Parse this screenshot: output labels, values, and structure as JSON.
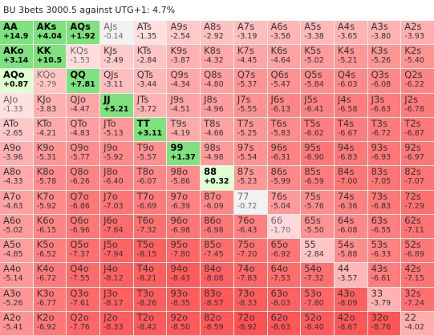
{
  "title": "BU 3bets 3000.5 against UTG+1: 4.7%",
  "ranks": [
    "A",
    "K",
    "Q",
    "J",
    "T",
    "9",
    "8",
    "7",
    "6",
    "5",
    "4",
    "3",
    "2"
  ],
  "hero_cells": [
    "AA",
    "AKs",
    "AQs",
    "AKo",
    "KK",
    "AQo",
    "QQ",
    "JJ",
    "TT",
    "99",
    "88"
  ],
  "colors": {
    "action_green": "#7ee27e",
    "hero_light_green": "#dfffd0",
    "fold_red": "#ff6c6c",
    "fold_light": "#ffe6e6",
    "neutral": "#f2f2f2"
  },
  "grid": [
    [
      [
        "AA",
        "+14.9"
      ],
      [
        "AKs",
        "+4.04"
      ],
      [
        "AQs",
        "+1.92"
      ],
      [
        "AJs",
        "-0.14"
      ],
      [
        "ATs",
        "-1.35"
      ],
      [
        "A9s",
        "-2.54"
      ],
      [
        "A8s",
        "-2.92"
      ],
      [
        "A7s",
        "-3.19"
      ],
      [
        "A6s",
        "-3.56"
      ],
      [
        "A5s",
        "-3.38"
      ],
      [
        "A4s",
        "-3.65"
      ],
      [
        "A3s",
        "-3.80"
      ],
      [
        "A2s",
        "-3.93"
      ]
    ],
    [
      [
        "AKo",
        "+3.14"
      ],
      [
        "KK",
        "+10.5"
      ],
      [
        "KQs",
        "-1.53"
      ],
      [
        "KJs",
        "-2.49"
      ],
      [
        "KTs",
        "-2.84"
      ],
      [
        "K9s",
        "-3.87"
      ],
      [
        "K8s",
        "-4.32"
      ],
      [
        "K7s",
        "-4.45"
      ],
      [
        "K6s",
        "-4.64"
      ],
      [
        "K5s",
        "-5.02"
      ],
      [
        "K4s",
        "-5.21"
      ],
      [
        "K3s",
        "-5.26"
      ],
      [
        "K2s",
        "-5.40"
      ]
    ],
    [
      [
        "AQo",
        "+0.87"
      ],
      [
        "KQo",
        "-2.79"
      ],
      [
        "QQ",
        "+7.81"
      ],
      [
        "QJs",
        "-3.11"
      ],
      [
        "QTs",
        "-3.44"
      ],
      [
        "Q9s",
        "-4.34"
      ],
      [
        "Q8s",
        "-4.80"
      ],
      [
        "Q7s",
        "-5.37"
      ],
      [
        "Q6s",
        "-5.47"
      ],
      [
        "Q5s",
        "-5.84"
      ],
      [
        "Q4s",
        "-6.03"
      ],
      [
        "Q3s",
        "-6.08"
      ],
      [
        "Q2s",
        "-6.22"
      ]
    ],
    [
      [
        "AJo",
        "-1.33"
      ],
      [
        "KJo",
        "-3.83"
      ],
      [
        "QJo",
        "-4.47"
      ],
      [
        "JJ",
        "+5.21"
      ],
      [
        "JTs",
        "-3.72"
      ],
      [
        "J9s",
        "-4.51"
      ],
      [
        "J8s",
        "-4.96"
      ],
      [
        "J7s",
        "-5.55"
      ],
      [
        "J6s",
        "-6.13"
      ],
      [
        "J5s",
        "-6.41"
      ],
      [
        "J4s",
        "-6.58"
      ],
      [
        "J3s",
        "-6.63"
      ],
      [
        "J2s",
        "-6.78"
      ]
    ],
    [
      [
        "ATo",
        "-2.65"
      ],
      [
        "KTo",
        "-4.21"
      ],
      [
        "QTo",
        "-4.83"
      ],
      [
        "JTo",
        "-5.13"
      ],
      [
        "TT",
        "+3.11"
      ],
      [
        "T9s",
        "-4.19"
      ],
      [
        "T8s",
        "-4.66"
      ],
      [
        "T7s",
        "-5.25"
      ],
      [
        "T6s",
        "-5.83"
      ],
      [
        "T5s",
        "-6.62"
      ],
      [
        "T4s",
        "-6.67"
      ],
      [
        "T3s",
        "-6.72"
      ],
      [
        "T2s",
        "-6.87"
      ]
    ],
    [
      [
        "A9o",
        "-3.96"
      ],
      [
        "K9o",
        "-5.31"
      ],
      [
        "Q9o",
        "-5.77"
      ],
      [
        "J9o",
        "-5.92"
      ],
      [
        "T9o",
        "-5.57"
      ],
      [
        "99",
        "+1.37"
      ],
      [
        "98s",
        "-4.98"
      ],
      [
        "97s",
        "-5.54"
      ],
      [
        "96s",
        "-6.31"
      ],
      [
        "95s",
        "-6.90"
      ],
      [
        "94s",
        "-6.83"
      ],
      [
        "93s",
        "-6.93"
      ],
      [
        "92s",
        "-6.97"
      ]
    ],
    [
      [
        "A8o",
        "-4.33"
      ],
      [
        "K8o",
        "-5.78"
      ],
      [
        "Q8o",
        "-6.26"
      ],
      [
        "J8o",
        "-6.40"
      ],
      [
        "T8o",
        "-6.07"
      ],
      [
        "98o",
        "-5.86"
      ],
      [
        "88",
        "+0.32"
      ],
      [
        "87s",
        "-5.23"
      ],
      [
        "86s",
        "-5.99"
      ],
      [
        "85s",
        "-6.59"
      ],
      [
        "84s",
        "-7.00"
      ],
      [
        "83s",
        "-7.05"
      ],
      [
        "82s",
        "-7.07"
      ]
    ],
    [
      [
        "A7o",
        "-4.63"
      ],
      [
        "K7o",
        "-5.92"
      ],
      [
        "Q7o",
        "-6.86"
      ],
      [
        "J7o",
        "-7.03"
      ],
      [
        "T7o",
        "-6.69"
      ],
      [
        "97o",
        "-6.39"
      ],
      [
        "87o",
        "-6.09"
      ],
      [
        "77",
        "-0.72"
      ],
      [
        "76s",
        "-5.04"
      ],
      [
        "75s",
        "-5.76"
      ],
      [
        "74s",
        "-6.36"
      ],
      [
        "73s",
        "-6.83"
      ],
      [
        "72s",
        "-7.29"
      ]
    ],
    [
      [
        "A6o",
        "-5.02"
      ],
      [
        "K6o",
        "-6.15"
      ],
      [
        "Q6o",
        "-6.96"
      ],
      [
        "J6o",
        "-7.64"
      ],
      [
        "T6o",
        "-7.32"
      ],
      [
        "96o",
        "-6.98"
      ],
      [
        "86o",
        "-6.98"
      ],
      [
        "76o",
        "-6.43"
      ],
      [
        "66",
        "-1.70"
      ],
      [
        "65s",
        "-5.50"
      ],
      [
        "64s",
        "-6.08"
      ],
      [
        "63s",
        "-6.55"
      ],
      [
        "62s",
        "-7.11"
      ]
    ],
    [
      [
        "A5o",
        "-4.85"
      ],
      [
        "K5o",
        "-6.52"
      ],
      [
        "Q5o",
        "-7.37"
      ],
      [
        "J5o",
        "-7.94"
      ],
      [
        "T5o",
        "-8.15"
      ],
      [
        "95o",
        "-7.80"
      ],
      [
        "85o",
        "-7.45"
      ],
      [
        "75o",
        "-7.20"
      ],
      [
        "65o",
        "-6.92"
      ],
      [
        "55",
        "-2.84"
      ],
      [
        "54s",
        "-5.88"
      ],
      [
        "53s",
        "-6.33"
      ],
      [
        "52s",
        "-6.89"
      ]
    ],
    [
      [
        "A4o",
        "-5.14"
      ],
      [
        "K4o",
        "-6.72"
      ],
      [
        "Q4o",
        "-7.55"
      ],
      [
        "J4o",
        "-8.12"
      ],
      [
        "T4o",
        "-8.21"
      ],
      [
        "94o",
        "-8.43"
      ],
      [
        "84o",
        "-8.08"
      ],
      [
        "74o",
        "-7.83"
      ],
      [
        "64o",
        "-7.53"
      ],
      [
        "54o",
        "-7.32"
      ],
      [
        "44",
        "-3.57"
      ],
      [
        "43s",
        "-6.61"
      ],
      [
        "42s",
        "-7.15"
      ]
    ],
    [
      [
        "A3o",
        "-5.26"
      ],
      [
        "K3o",
        "-6.77"
      ],
      [
        "Q3o",
        "-7.61"
      ],
      [
        "J3o",
        "-8.17"
      ],
      [
        "T3o",
        "-8.26"
      ],
      [
        "93o",
        "-8.35"
      ],
      [
        "83o",
        "-8.57"
      ],
      [
        "73o",
        "-8.33"
      ],
      [
        "63o",
        "-8.03"
      ],
      [
        "53o",
        "-7.80"
      ],
      [
        "43o",
        "-8.09"
      ],
      [
        "33",
        "-3.79"
      ],
      [
        "32s",
        "-7.24"
      ]
    ],
    [
      [
        "A2o",
        "-5.41"
      ],
      [
        "K2o",
        "-6.92"
      ],
      [
        "Q2o",
        "-7.76"
      ],
      [
        "J2o",
        "-8.33"
      ],
      [
        "T2o",
        "-8.42"
      ],
      [
        "92o",
        "-8.50"
      ],
      [
        "82o",
        "-8.59"
      ],
      [
        "72o",
        "-8.92"
      ],
      [
        "62o",
        "-8.63"
      ],
      [
        "52o",
        "-8.40"
      ],
      [
        "42o",
        "-8.67"
      ],
      [
        "32o",
        "-8.76"
      ],
      [
        "22",
        "-4.02"
      ]
    ]
  ]
}
